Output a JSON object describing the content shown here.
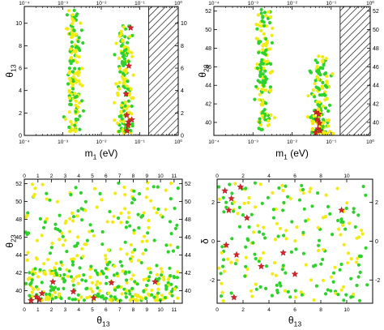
{
  "chart_data": [
    {
      "type": "scatter",
      "panel": "top-left",
      "xlabel": "m_1 (eV)",
      "ylabel": "θ_13",
      "xscale": "log",
      "xlim": [
        0.0001,
        1
      ],
      "ylim": [
        0,
        11.5
      ],
      "xticks": [
        0.0001,
        0.001,
        0.01,
        0.1,
        1
      ],
      "xtick_labels": [
        "10⁻⁴",
        "10⁻³",
        "10⁻²",
        "10⁻¹",
        "10⁰"
      ],
      "yticks": [
        0,
        2,
        4,
        6,
        8,
        10
      ],
      "ytick_labels": [
        "0",
        "2",
        "4",
        "6",
        "8",
        "10"
      ],
      "excluded_region": {
        "from": 0.17,
        "to": 1
      },
      "colors": {
        "yellow": "#f2ea13",
        "green": "#2dd22a",
        "star": "#d8232a"
      },
      "bands": [
        {
          "xmin": 0.0009,
          "xmax": 0.004,
          "ymin": 0.3,
          "ymax": 11.2
        },
        {
          "xmin": 0.02,
          "xmax": 0.08,
          "ymin": 0.2,
          "ymax": 9.8
        }
      ],
      "stars": [
        [
          0.058,
          9.6
        ],
        [
          0.052,
          6.2
        ],
        [
          0.044,
          3.7
        ],
        [
          0.046,
          1.8
        ],
        [
          0.051,
          1.2
        ],
        [
          0.05,
          0.9
        ],
        [
          0.062,
          1.4
        ],
        [
          0.047,
          0.4
        ]
      ]
    },
    {
      "type": "scatter",
      "panel": "top-right",
      "xlabel": "m_1 (eV)",
      "ylabel": "θ_23",
      "xscale": "log",
      "xlim": [
        0.0001,
        1
      ],
      "ylim": [
        38.6,
        52.5
      ],
      "xticks": [
        0.0001,
        0.001,
        0.01,
        0.1,
        1
      ],
      "xtick_labels": [
        "10⁻⁴",
        "10⁻³",
        "10⁻²",
        "10⁻¹",
        "10⁰"
      ],
      "yticks": [
        40,
        42,
        44,
        46,
        48,
        50,
        52
      ],
      "ytick_labels": [
        "40",
        "42",
        "44",
        "46",
        "48",
        "50",
        "52"
      ],
      "excluded_region": {
        "from": 0.17,
        "to": 1
      },
      "colors": {
        "yellow": "#f2ea13",
        "green": "#2dd22a",
        "star": "#d8232a"
      },
      "bands": [
        {
          "xmin": 0.0009,
          "xmax": 0.004,
          "ymin": 39.2,
          "ymax": 52.2
        },
        {
          "xmin": 0.02,
          "xmax": 0.13,
          "ymin": 38.8,
          "ymax": 47.2
        }
      ],
      "stars": [
        [
          0.041,
          41.1
        ],
        [
          0.048,
          40.9
        ],
        [
          0.044,
          40.3
        ],
        [
          0.05,
          39.9
        ],
        [
          0.046,
          39.3
        ],
        [
          0.052,
          39.1
        ],
        [
          0.04,
          38.9
        ]
      ]
    },
    {
      "type": "scatter",
      "panel": "bottom-left",
      "xlabel": "θ_13",
      "ylabel": "θ_23",
      "xlim": [
        0,
        11.6
      ],
      "ylim": [
        38.6,
        52.5
      ],
      "xticks": [
        0,
        1,
        2,
        3,
        4,
        5,
        6,
        7,
        8,
        9,
        10,
        11
      ],
      "xtick_labels": [
        "0",
        "1",
        "2",
        "3",
        "4",
        "5",
        "6",
        "7",
        "8",
        "9",
        "10",
        "11"
      ],
      "yticks": [
        40,
        42,
        44,
        46,
        48,
        50,
        52
      ],
      "ytick_labels": [
        "40",
        "42",
        "44",
        "46",
        "48",
        "50",
        "52"
      ],
      "colors": {
        "yellow": "#f2ea13",
        "green": "#2dd22a",
        "star": "#d8232a"
      },
      "bands": [
        {
          "xmin": 0.1,
          "xmax": 11.3,
          "ymin": 38.9,
          "ymax": 42.5
        },
        {
          "xmin": 0.1,
          "xmax": 11.3,
          "ymin": 41.0,
          "ymax": 52.2
        }
      ],
      "stars": [
        [
          0.5,
          38.9
        ],
        [
          1.1,
          39.0
        ],
        [
          1.3,
          39.7
        ],
        [
          2.1,
          41.0
        ],
        [
          3.6,
          39.9
        ],
        [
          5.1,
          39.2
        ],
        [
          6.4,
          40.9
        ],
        [
          9.6,
          41.0
        ],
        [
          0.9,
          39.3
        ]
      ]
    },
    {
      "type": "scatter",
      "panel": "bottom-right",
      "xlabel": "θ_13",
      "ylabel": "δ",
      "xlim": [
        0,
        12
      ],
      "ylim": [
        -3.2,
        3.2
      ],
      "xticks": [
        0,
        2,
        4,
        6,
        8,
        10
      ],
      "xtick_labels": [
        "0",
        "2",
        "4",
        "6",
        "8",
        "10"
      ],
      "yticks": [
        -2,
        0,
        2
      ],
      "ytick_labels": [
        "-2",
        "0",
        "2"
      ],
      "colors": {
        "yellow": "#f2ea13",
        "green": "#2dd22a",
        "star": "#d8232a"
      },
      "bands": [
        {
          "xmin": 0.1,
          "xmax": 11.6,
          "ymin": -3.1,
          "ymax": 3.1
        }
      ],
      "stars": [
        [
          1.1,
          2.2
        ],
        [
          1.8,
          2.8
        ],
        [
          0.6,
          2.6
        ],
        [
          2.3,
          1.2
        ],
        [
          0.9,
          1.6
        ],
        [
          1.5,
          -0.7
        ],
        [
          3.4,
          -1.3
        ],
        [
          5.1,
          -0.6
        ],
        [
          6.0,
          -1.7
        ],
        [
          9.6,
          1.6
        ],
        [
          1.3,
          -2.9
        ],
        [
          0.7,
          -0.2
        ]
      ]
    }
  ]
}
